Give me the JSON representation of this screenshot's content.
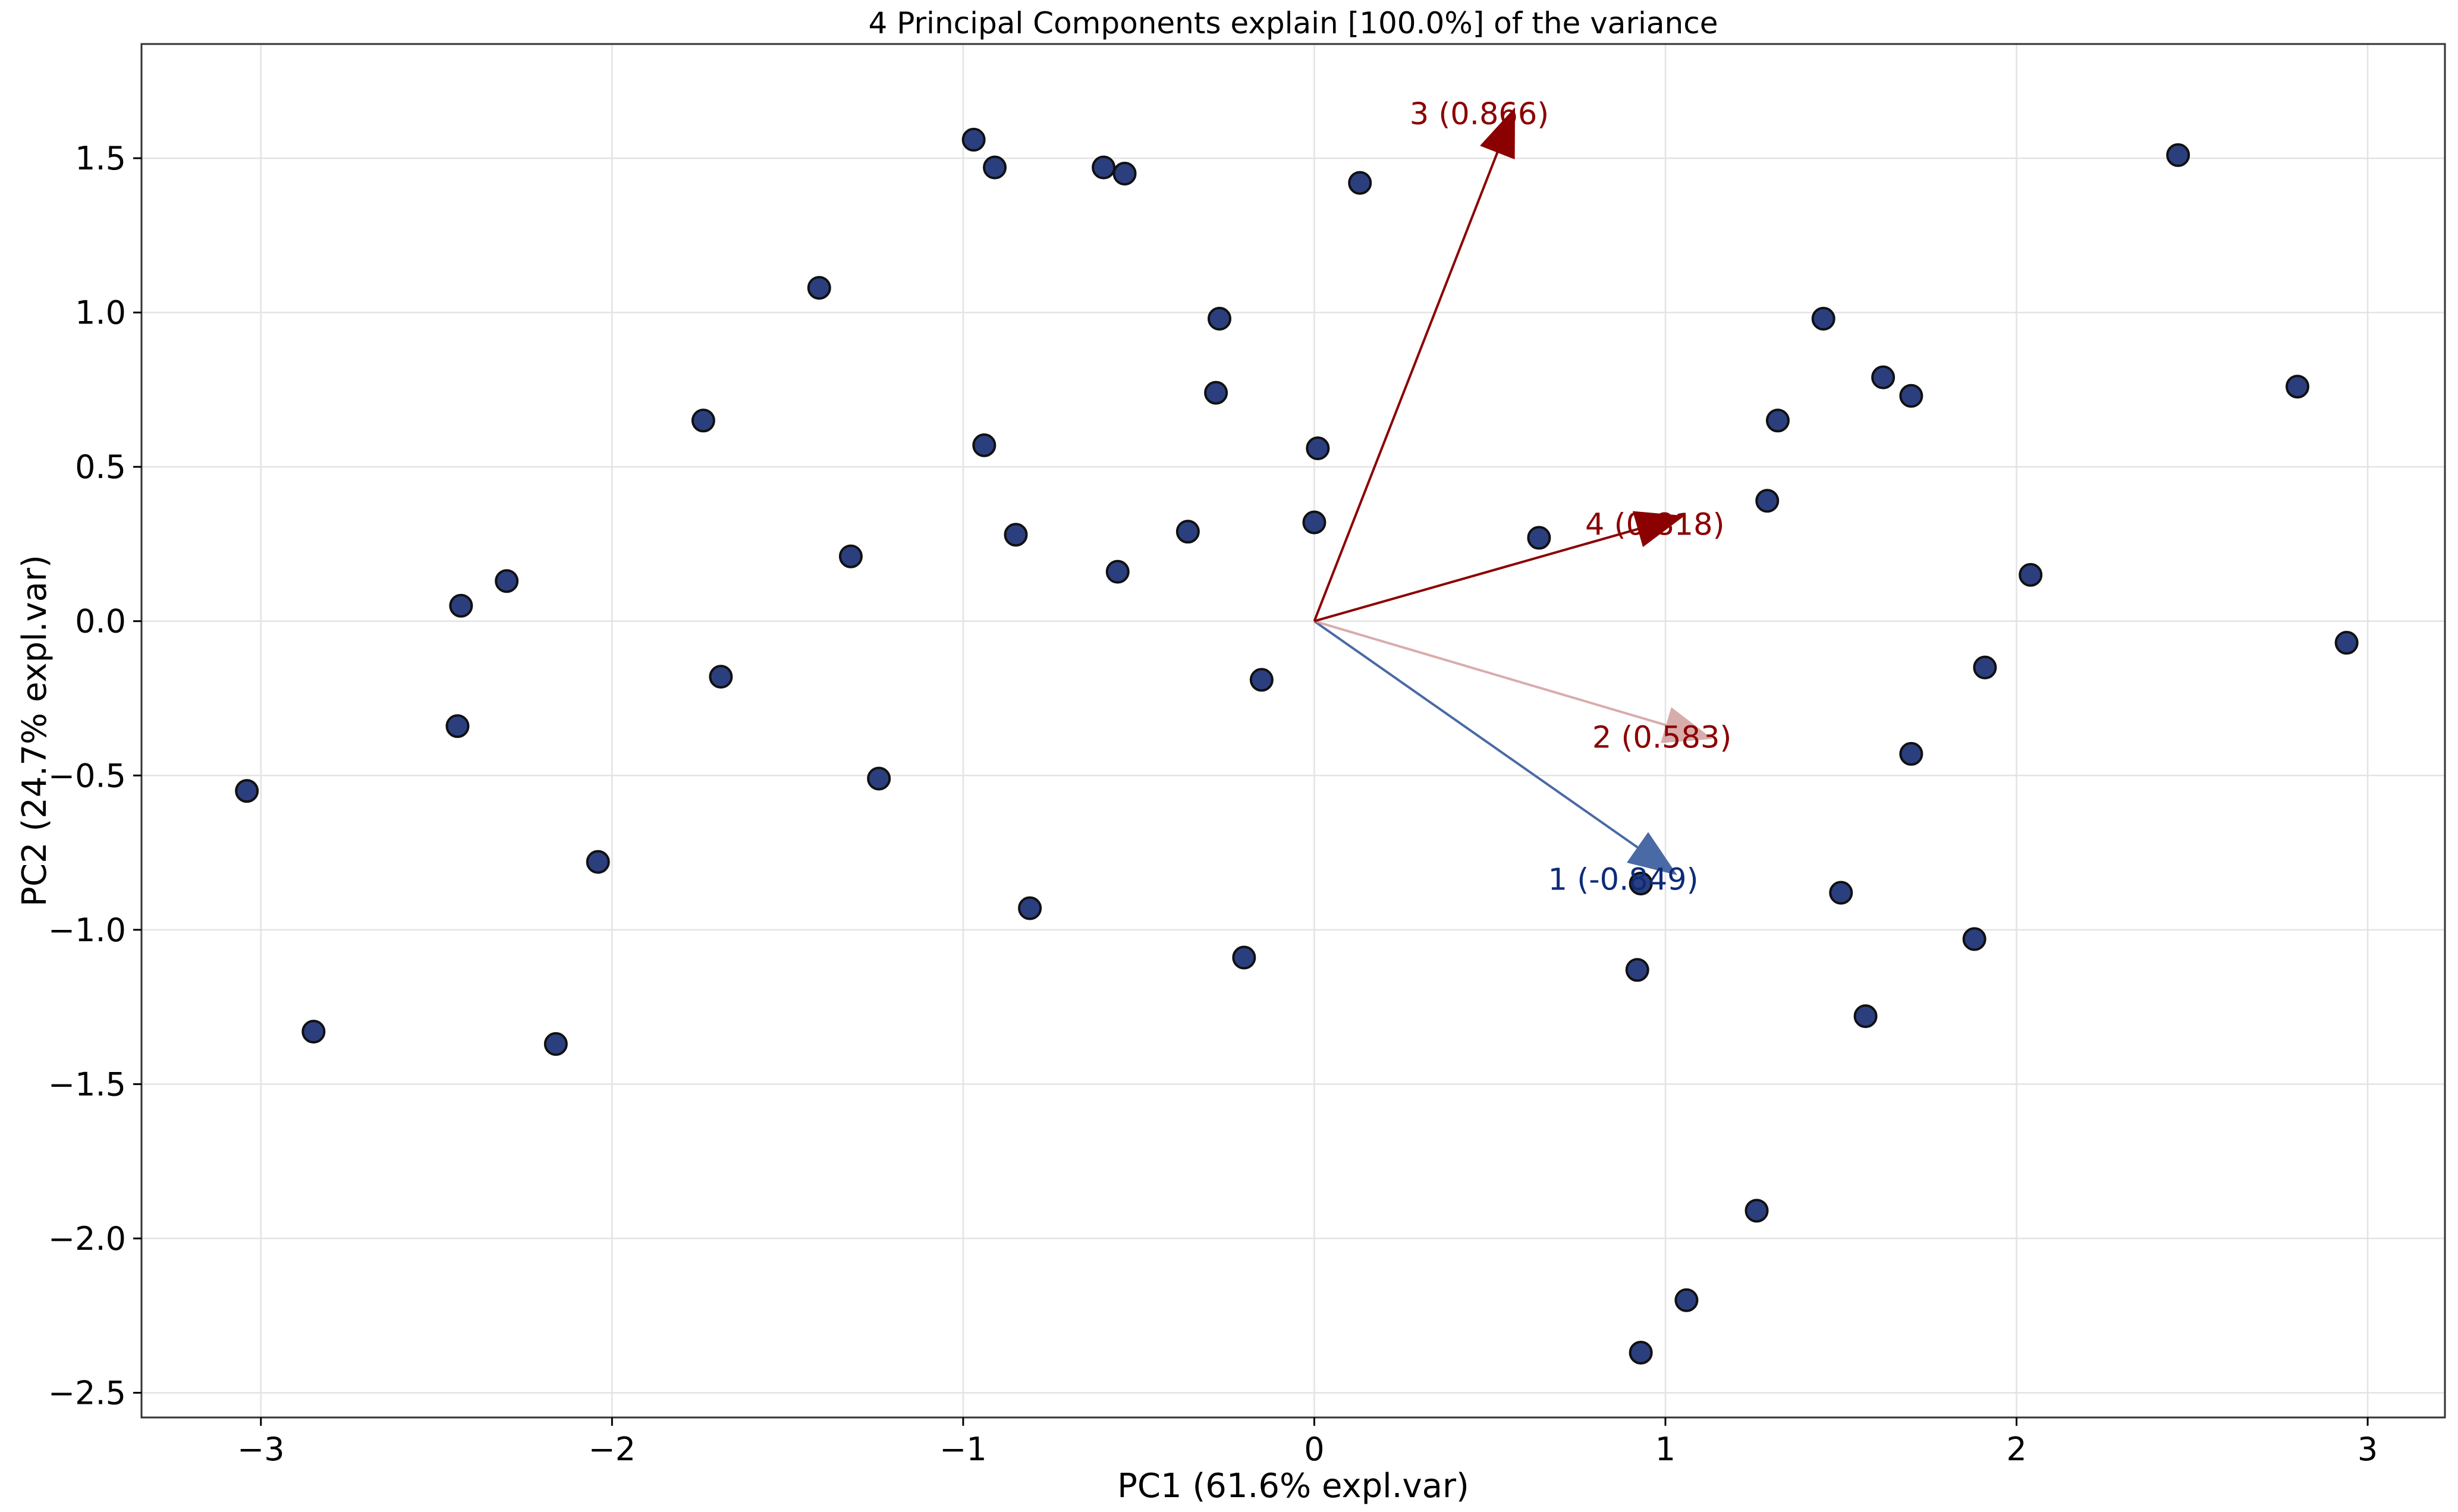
{
  "chart_data": {
    "type": "scatter",
    "title": "4 Principal Components explain [100.0%] of the variance",
    "xlabel": "PC1 (61.6% expl.var)",
    "ylabel": "PC2 (24.7% expl.var)",
    "xlim": [
      -3.34,
      3.22
    ],
    "ylim": [
      -2.58,
      1.87
    ],
    "grid": true,
    "xticks": [
      -3,
      -2,
      -1,
      0,
      1,
      2,
      3
    ],
    "xtick_labels": [
      "−3",
      "−2",
      "−1",
      "0",
      "1",
      "2",
      "3"
    ],
    "yticks": [
      -2.5,
      -2.0,
      -1.5,
      -1.0,
      -0.5,
      0.0,
      0.5,
      1.0,
      1.5
    ],
    "ytick_labels": [
      "−2.5",
      "−2.0",
      "−1.5",
      "−1.0",
      "−0.5",
      "0.0",
      "0.5",
      "1.0",
      "1.5"
    ],
    "point_color": "#2b3f7f",
    "points": [
      [
        -3.04,
        -0.55
      ],
      [
        -2.85,
        -1.33
      ],
      [
        -2.44,
        -0.34
      ],
      [
        -2.43,
        0.05
      ],
      [
        -2.3,
        0.13
      ],
      [
        -2.16,
        -1.37
      ],
      [
        -2.04,
        -0.78
      ],
      [
        -1.74,
        0.65
      ],
      [
        -1.69,
        -0.18
      ],
      [
        -1.41,
        1.08
      ],
      [
        -1.32,
        0.21
      ],
      [
        -1.24,
        -0.51
      ],
      [
        -0.97,
        1.56
      ],
      [
        -0.94,
        0.57
      ],
      [
        -0.91,
        1.47
      ],
      [
        -0.85,
        0.28
      ],
      [
        -0.81,
        -0.93
      ],
      [
        -0.6,
        1.47
      ],
      [
        -0.56,
        0.16
      ],
      [
        -0.54,
        1.45
      ],
      [
        -0.36,
        0.29
      ],
      [
        -0.28,
        0.74
      ],
      [
        -0.27,
        0.98
      ],
      [
        -0.2,
        -1.09
      ],
      [
        -0.15,
        -0.19
      ],
      [
        0.0,
        0.32
      ],
      [
        0.01,
        0.56
      ],
      [
        0.13,
        1.42
      ],
      [
        0.64,
        0.27
      ],
      [
        0.93,
        -0.85
      ],
      [
        0.92,
        -1.13
      ],
      [
        0.93,
        -2.37
      ],
      [
        1.06,
        -2.2
      ],
      [
        1.26,
        -1.91
      ],
      [
        1.29,
        0.39
      ],
      [
        1.32,
        0.65
      ],
      [
        1.45,
        0.98
      ],
      [
        1.5,
        -0.88
      ],
      [
        1.57,
        -1.28
      ],
      [
        1.62,
        0.79
      ],
      [
        1.7,
        0.73
      ],
      [
        1.7,
        -0.43
      ],
      [
        1.88,
        -1.03
      ],
      [
        1.91,
        -0.15
      ],
      [
        2.04,
        0.15
      ],
      [
        2.46,
        1.51
      ],
      [
        2.8,
        0.76
      ],
      [
        2.94,
        -0.07
      ]
    ],
    "loadings": [
      {
        "label": "1 (-0.849)",
        "x": 1.03,
        "y": -0.82,
        "color": "#4a6aa5",
        "text_color": "#0d2b7a",
        "opacity": 1.0
      },
      {
        "label": "2 (0.583)",
        "x": 1.13,
        "y": -0.38,
        "color": "#c98a8a",
        "text_color": "#8b0000",
        "opacity": 0.7
      },
      {
        "label": "3 (0.866)",
        "x": 0.57,
        "y": 1.66,
        "color": "#8b0000",
        "text_color": "#8b0000",
        "opacity": 1.0
      },
      {
        "label": "4 (0.818)",
        "x": 1.05,
        "y": 0.34,
        "color": "#8b0000",
        "text_color": "#8b0000",
        "opacity": 1.0
      }
    ],
    "loading_label_offsets": [
      [
        0.88,
        -0.87
      ],
      [
        0.99,
        -0.41
      ],
      [
        0.47,
        1.61
      ],
      [
        0.97,
        0.28
      ]
    ]
  }
}
